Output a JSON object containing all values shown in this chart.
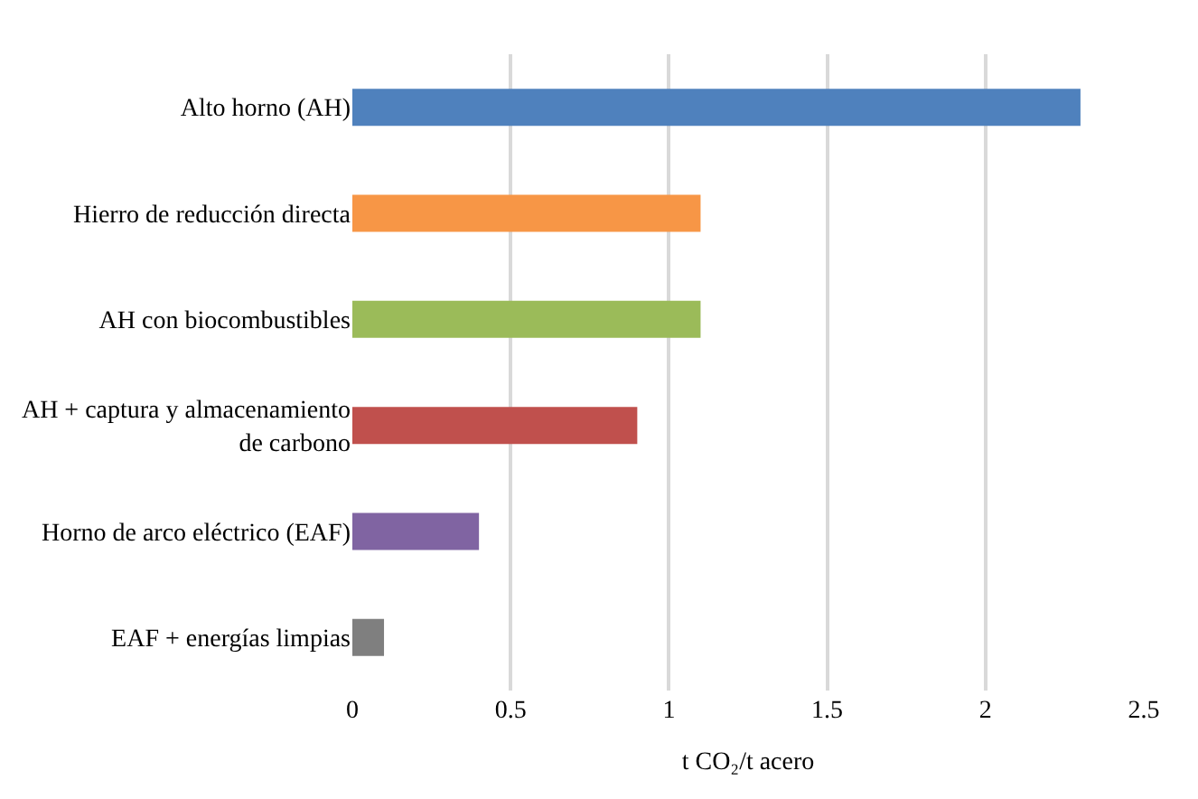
{
  "chart_data": {
    "type": "bar",
    "orientation": "horizontal",
    "categories": [
      "Alto horno (AH)",
      "Hierro de reducción directa",
      "AH con biocombustibles",
      "AH + captura y almacenamiento\nde carbono",
      "Horno de arco eléctrico (EAF)",
      "EAF + energías limpias"
    ],
    "values": [
      2.3,
      1.1,
      1.1,
      0.9,
      0.4,
      0.1
    ],
    "colors": [
      "#4f81bd",
      "#f79646",
      "#9bbb59",
      "#c0504d",
      "#8064a2",
      "#7f7f7f"
    ],
    "xlabel": "t CO₂/t acero",
    "xlim": [
      0,
      2.5
    ],
    "xticks": [
      0,
      0.5,
      1,
      1.5,
      2,
      2.5
    ],
    "grid": "x"
  }
}
